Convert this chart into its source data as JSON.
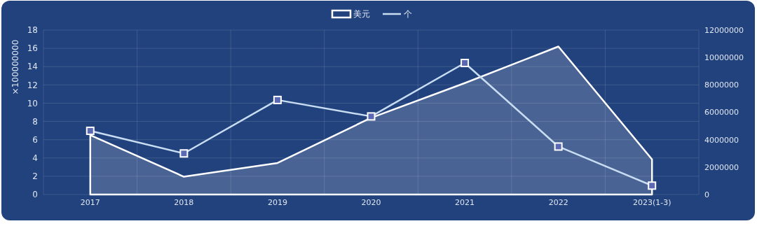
{
  "chart_data": {
    "type": "line",
    "ylabel": "×100000000",
    "categories": [
      "2017",
      "2018",
      "2019",
      "2020",
      "2021",
      "2022",
      "2023(1-3)"
    ],
    "series": [
      {
        "name": "美元",
        "type": "area",
        "color": "#ffffff",
        "values": [
          6.5,
          1.95,
          3.45,
          8.4,
          12.2,
          16.2,
          3.85
        ]
      },
      {
        "name": "个",
        "axis": "y2",
        "color": "#c8ddf2",
        "marker": "square",
        "values": [
          4650000,
          3000000,
          6900000,
          5700000,
          9600000,
          3500000,
          650000
        ]
      }
    ],
    "ylim": [
      0,
      18
    ],
    "yticks": [
      0,
      2,
      4,
      6,
      8,
      10,
      12,
      14,
      16,
      18
    ],
    "y2lim": [
      0,
      12000000
    ],
    "y2ticks": [
      0,
      2000000,
      4000000,
      6000000,
      8000000,
      10000000,
      12000000
    ],
    "grid": true,
    "legend": "top"
  }
}
